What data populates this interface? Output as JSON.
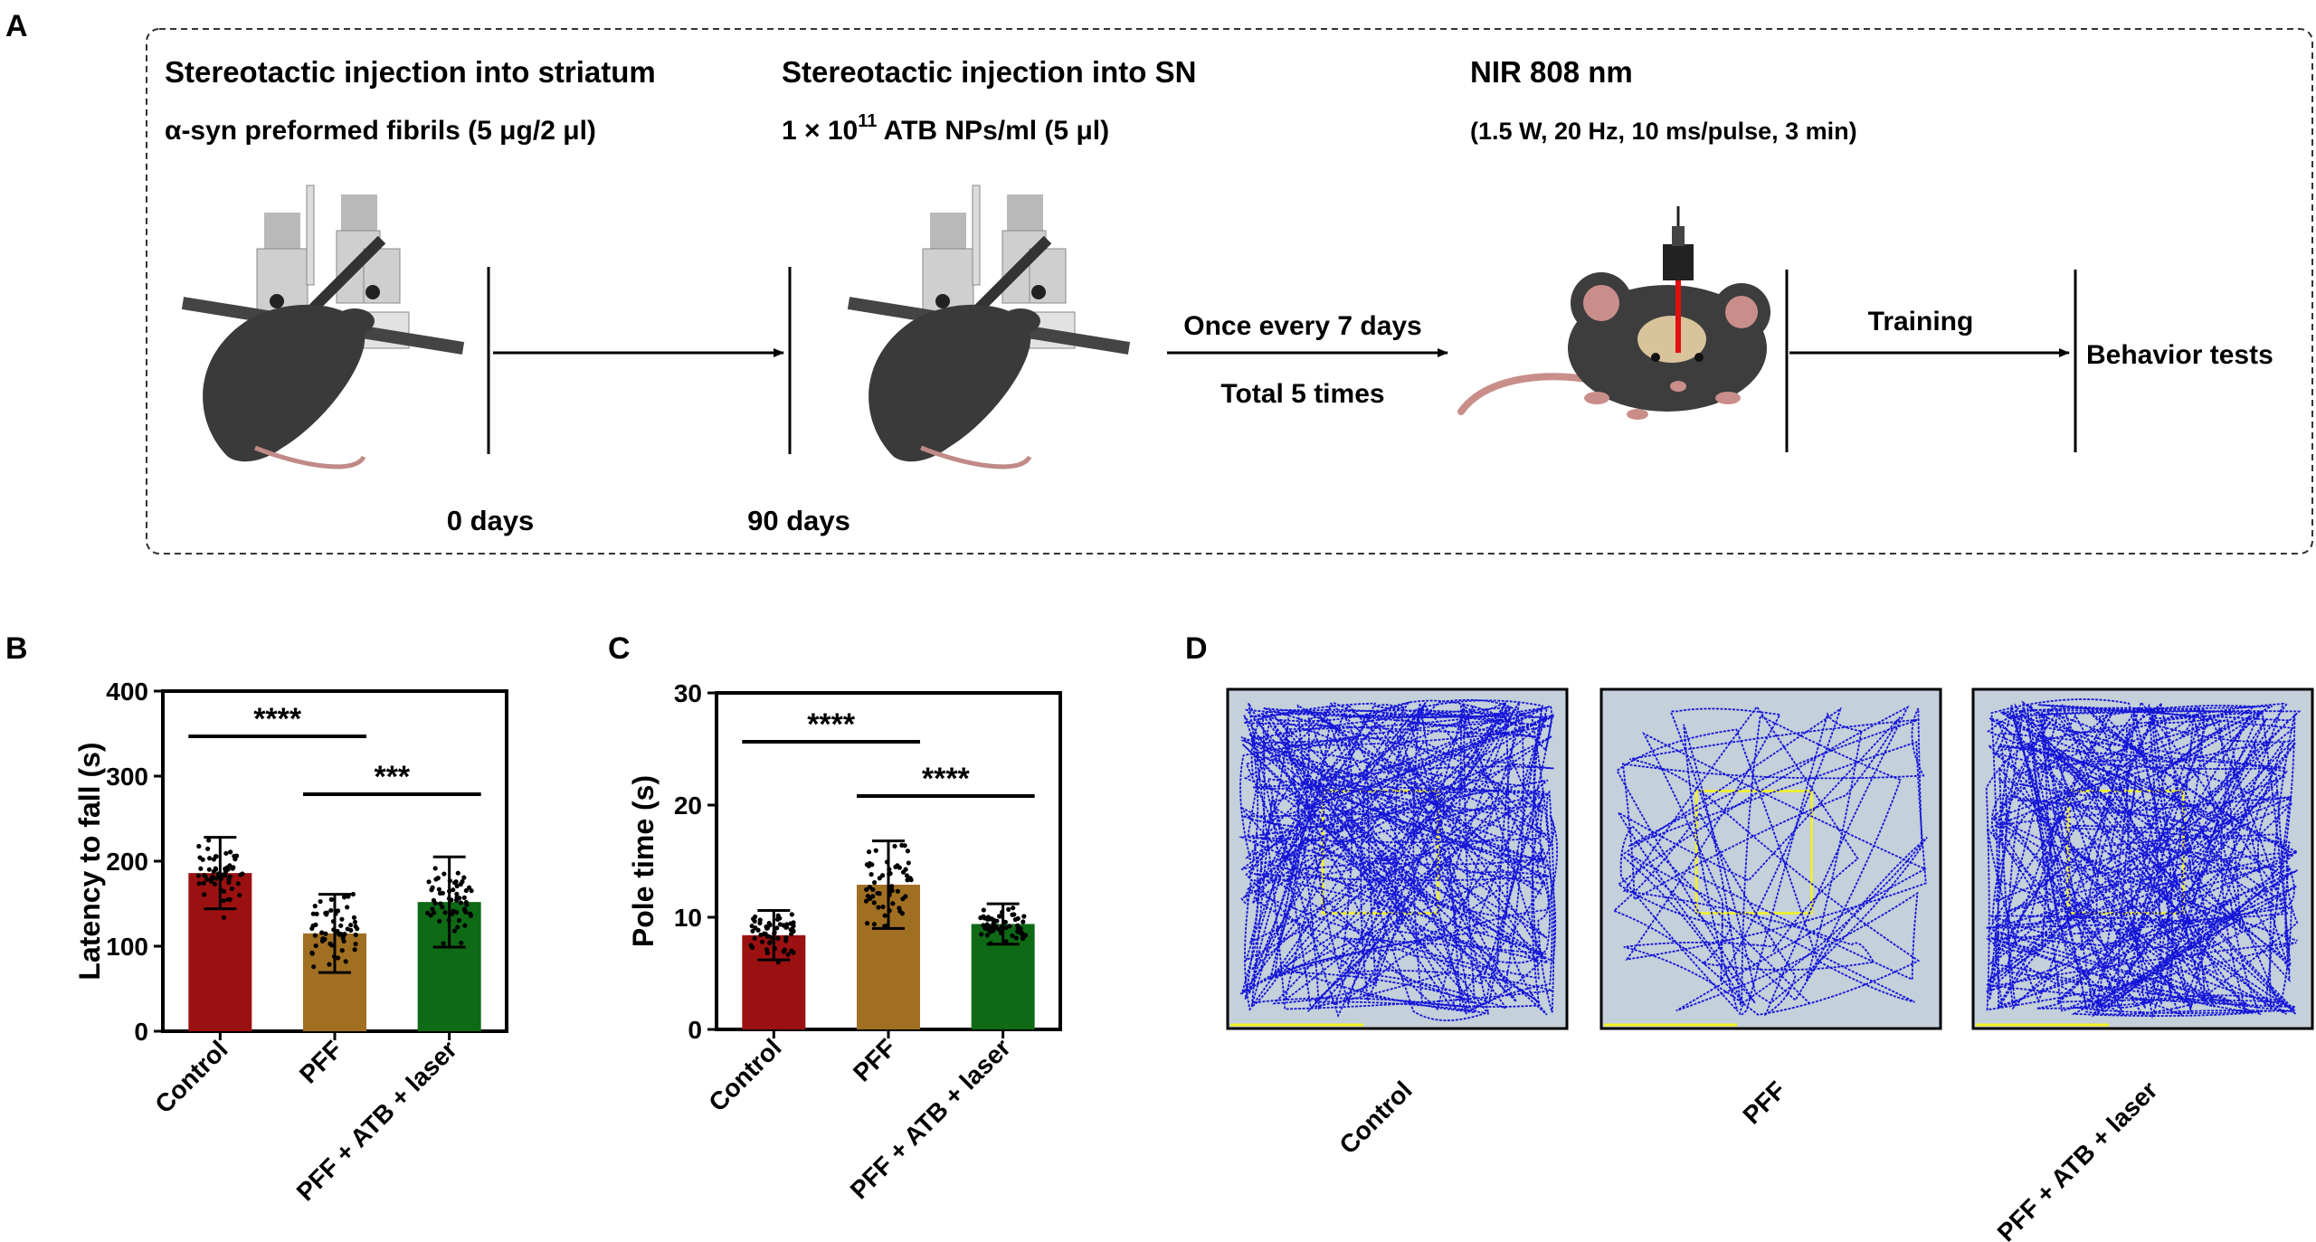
{
  "panel_a": {
    "label": "A",
    "step1": {
      "title": "Stereotactic injection into striatum",
      "detail": "α-syn preformed fibrils (5 μg/2 μl)"
    },
    "step2": {
      "title": "Stereotactic injection into SN",
      "detail_prefix": "1 × 10",
      "detail_sup": "11",
      "detail_suffix": " ATB NPs/ml (5 μl)"
    },
    "step3": {
      "title": "NIR 808 nm",
      "detail": "(1.5 W, 20 Hz, 10 ms/pulse, 3 min)"
    },
    "freq_line1": "Once every 7 days",
    "freq_line2": "Total 5 times",
    "training": "Training",
    "behavior": "Behavior tests",
    "day0": "0 days",
    "day90": "90 days"
  },
  "panel_b": {
    "label": "B"
  },
  "panel_c": {
    "label": "C"
  },
  "panel_d": {
    "label": "D",
    "panels": [
      "Control",
      "PFF",
      "PFF + ATB + laser"
    ],
    "colors": {
      "path": "#1515d8",
      "arena": "#c4d0da",
      "zone": "#f2f21e"
    }
  },
  "chart_data": [
    {
      "type": "bar",
      "panel": "B",
      "categories": [
        "Control",
        "PFF",
        "PFF + ATB + laser"
      ],
      "values": [
        186,
        115,
        152
      ],
      "errors": [
        42,
        46,
        53
      ],
      "ylabel": "Latency to fall (s)",
      "ylim": [
        0,
        400
      ],
      "yticks": [
        0,
        100,
        200,
        300,
        400
      ],
      "colors": [
        "#9b1111",
        "#a06f22",
        "#0f6a16"
      ],
      "significance": [
        {
          "from": 0,
          "to": 1,
          "label": "****"
        },
        {
          "from": 1,
          "to": 2,
          "label": "***"
        }
      ]
    },
    {
      "type": "bar",
      "panel": "C",
      "categories": [
        "Control",
        "PFF",
        "PFF + ATB + laser"
      ],
      "values": [
        8.4,
        12.9,
        9.4
      ],
      "errors": [
        2.2,
        3.9,
        1.8
      ],
      "ylabel": "Pole time (s)",
      "ylim": [
        0,
        30
      ],
      "yticks": [
        0,
        10,
        20,
        30
      ],
      "colors": [
        "#9b1111",
        "#a06f22",
        "#0f6a16"
      ],
      "significance": [
        {
          "from": 0,
          "to": 1,
          "label": "****"
        },
        {
          "from": 1,
          "to": 2,
          "label": "****"
        }
      ]
    }
  ]
}
